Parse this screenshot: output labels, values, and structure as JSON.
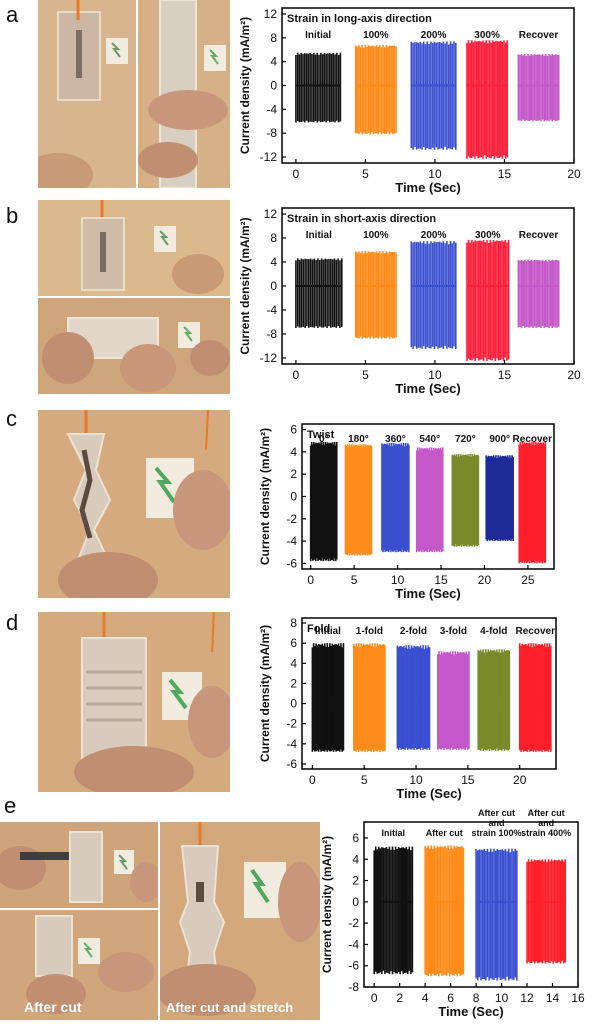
{
  "panels": [
    {
      "letter": "a",
      "chart": {
        "type": "bar",
        "title": "Strain in long-axis direction",
        "xlabel": "Time (Sec)",
        "ylabel": "Current density (mA/m²)",
        "xlim": [
          -1,
          20
        ],
        "ylim": [
          -13,
          13
        ],
        "xticks": [
          0,
          5,
          10,
          15,
          20
        ],
        "yticks": [
          -12,
          -8,
          -4,
          0,
          4,
          8,
          12
        ],
        "groups": [
          {
            "label": "Initial",
            "start": 0,
            "end": 3.2,
            "pos": 5.5,
            "neg": -6.2,
            "color": "#111111"
          },
          {
            "label": "100%",
            "start": 4.3,
            "end": 7.2,
            "pos": 6.8,
            "neg": -8.2,
            "color": "#ff8c1a"
          },
          {
            "label": "200%",
            "start": 8.3,
            "end": 11.5,
            "pos": 7.4,
            "neg": -10.8,
            "color": "#3a4fd0"
          },
          {
            "label": "300%",
            "start": 12.3,
            "end": 15.2,
            "pos": 7.6,
            "neg": -12.3,
            "color": "#ff1f3a"
          },
          {
            "label": "Recover",
            "start": 16.0,
            "end": 18.9,
            "pos": 5.3,
            "neg": -6.0,
            "color": "#c458c8"
          }
        ]
      }
    },
    {
      "letter": "b",
      "chart": {
        "type": "bar",
        "title": "Strain in short-axis direction",
        "xlabel": "Time (Sec)",
        "ylabel": "Current density (mA/m²)",
        "xlim": [
          -1,
          20
        ],
        "ylim": [
          -13,
          13
        ],
        "xticks": [
          0,
          5,
          10,
          15,
          20
        ],
        "yticks": [
          -12,
          -8,
          -4,
          0,
          4,
          8,
          12
        ],
        "groups": [
          {
            "label": "Initial",
            "start": 0,
            "end": 3.3,
            "pos": 4.6,
            "neg": -7.0,
            "color": "#111111"
          },
          {
            "label": "100%",
            "start": 4.3,
            "end": 7.2,
            "pos": 5.8,
            "neg": -8.8,
            "color": "#ff8c1a"
          },
          {
            "label": "200%",
            "start": 8.3,
            "end": 11.5,
            "pos": 7.5,
            "neg": -10.5,
            "color": "#3a4fd0"
          },
          {
            "label": "300%",
            "start": 12.3,
            "end": 15.3,
            "pos": 7.7,
            "neg": -12.5,
            "color": "#ff1f3a"
          },
          {
            "label": "Recover",
            "start": 16.0,
            "end": 18.9,
            "pos": 4.4,
            "neg": -7.0,
            "color": "#c458c8"
          }
        ]
      }
    },
    {
      "letter": "c",
      "chart": {
        "type": "bar",
        "title": "Twist",
        "xlabel": "Time (Sec)",
        "ylabel": "Current density (mA/m²)",
        "xlim": [
          -1,
          28
        ],
        "ylim": [
          -6.5,
          6.5
        ],
        "xticks": [
          0,
          5,
          10,
          15,
          20,
          25
        ],
        "yticks": [
          -6,
          -4,
          -2,
          0,
          2,
          4,
          6
        ],
        "groups": [
          {
            "label": "0°",
            "start": 0,
            "end": 3.0,
            "pos": 4.9,
            "neg": -5.8,
            "color": "#111111"
          },
          {
            "label": "180°",
            "start": 4.0,
            "end": 7.0,
            "pos": 4.7,
            "neg": -5.3,
            "color": "#ff8c1a"
          },
          {
            "label": "360°",
            "start": 8.2,
            "end": 11.3,
            "pos": 4.8,
            "neg": -5.0,
            "color": "#3a4fd0"
          },
          {
            "label": "540°",
            "start": 12.2,
            "end": 15.2,
            "pos": 4.4,
            "neg": -5.0,
            "color": "#c458c8"
          },
          {
            "label": "720°",
            "start": 16.3,
            "end": 19.3,
            "pos": 3.8,
            "neg": -4.5,
            "color": "#7a8a2a"
          },
          {
            "label": "900°",
            "start": 20.2,
            "end": 23.3,
            "pos": 3.7,
            "neg": -4.0,
            "color": "#1f2a99"
          },
          {
            "label": "Recover",
            "start": 24.0,
            "end": 27.0,
            "pos": 4.9,
            "neg": -6.0,
            "color": "#ff1f2a"
          }
        ]
      }
    },
    {
      "letter": "d",
      "chart": {
        "type": "bar",
        "title": "Fold",
        "xlabel": "Time (Sec)",
        "ylabel": "Current density (mA/m²)",
        "xlim": [
          -1,
          23.5
        ],
        "ylim": [
          -6.5,
          8.5
        ],
        "xticks": [
          0,
          5,
          10,
          15,
          20
        ],
        "yticks": [
          -6,
          -4,
          -2,
          0,
          2,
          4,
          6,
          8
        ],
        "groups": [
          {
            "label": "Initial",
            "start": 0,
            "end": 3.0,
            "pos": 6.0,
            "neg": -4.8,
            "color": "#111111"
          },
          {
            "label": "1-fold",
            "start": 4.0,
            "end": 7.0,
            "pos": 6.0,
            "neg": -4.8,
            "color": "#ff8c1a"
          },
          {
            "label": "2-fold",
            "start": 8.2,
            "end": 11.3,
            "pos": 5.8,
            "neg": -4.6,
            "color": "#3a4fd0"
          },
          {
            "label": "3-fold",
            "start": 12.1,
            "end": 15.1,
            "pos": 5.2,
            "neg": -4.6,
            "color": "#c458c8"
          },
          {
            "label": "4-fold",
            "start": 16.0,
            "end": 19.0,
            "pos": 5.4,
            "neg": -4.7,
            "color": "#7a8a2a"
          },
          {
            "label": "Recover",
            "start": 20.0,
            "end": 23.0,
            "pos": 6.0,
            "neg": -4.8,
            "color": "#ff1f2a"
          }
        ]
      }
    },
    {
      "letter": "e",
      "captions": [
        "After cut",
        "After cut and stretch"
      ],
      "chart": {
        "type": "bar",
        "title": "",
        "xlabel": "Time (Sec)",
        "ylabel": "Current density (mA/m²)",
        "xlim": [
          -0.8,
          16
        ],
        "ylim": [
          -8,
          7.5
        ],
        "xticks": [
          0,
          2,
          4,
          6,
          8,
          10,
          12,
          14,
          16
        ],
        "yticks": [
          -8,
          -6,
          -4,
          -2,
          0,
          2,
          4,
          6
        ],
        "groups": [
          {
            "label": "Initial",
            "start": 0,
            "end": 3.0,
            "pos": 5.2,
            "neg": -6.8,
            "color": "#111111"
          },
          {
            "label": "After cut",
            "start": 4.0,
            "end": 7.0,
            "pos": 5.3,
            "neg": -7.0,
            "color": "#ff8c1a"
          },
          {
            "label": "After cut and strain 100%",
            "start": 8.0,
            "end": 11.2,
            "pos": 5.0,
            "neg": -7.4,
            "color": "#3a4fd0"
          },
          {
            "label": "After cut and strain 400%",
            "start": 12.0,
            "end": 15.0,
            "pos": 4.0,
            "neg": -5.8,
            "color": "#ff1f2a"
          }
        ]
      }
    }
  ]
}
